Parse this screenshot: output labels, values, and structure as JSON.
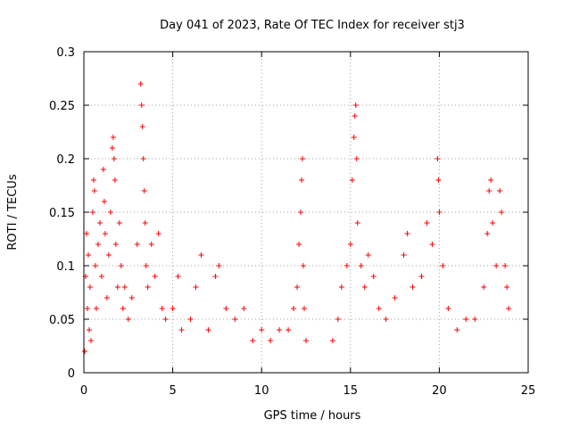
{
  "chart_data": {
    "type": "scatter",
    "title": "Day 041 of 2023, Rate Of TEC Index for receiver stj3",
    "xlabel": "GPS time / hours",
    "ylabel": "ROTI / TECUs",
    "xlim": [
      0,
      25
    ],
    "ylim": [
      0,
      0.3
    ],
    "xticks": [
      "0",
      "5",
      "10",
      "15",
      "20",
      "25"
    ],
    "yticks": [
      "0",
      "0.05",
      "0.1",
      "0.15",
      "0.2",
      "0.25",
      "0.3"
    ],
    "grid": true,
    "marker": "plus",
    "color": "#ff0000",
    "series": [
      {
        "points": [
          [
            0.05,
            0.02
          ],
          [
            0.1,
            0.09
          ],
          [
            0.15,
            0.13
          ],
          [
            0.2,
            0.06
          ],
          [
            0.25,
            0.11
          ],
          [
            0.3,
            0.04
          ],
          [
            0.35,
            0.08
          ],
          [
            0.4,
            0.03
          ],
          [
            0.5,
            0.15
          ],
          [
            0.55,
            0.18
          ],
          [
            0.6,
            0.17
          ],
          [
            0.65,
            0.1
          ],
          [
            0.7,
            0.06
          ],
          [
            0.8,
            0.12
          ],
          [
            0.9,
            0.14
          ],
          [
            1.0,
            0.09
          ],
          [
            1.1,
            0.19
          ],
          [
            1.15,
            0.16
          ],
          [
            1.2,
            0.13
          ],
          [
            1.3,
            0.07
          ],
          [
            1.4,
            0.11
          ],
          [
            1.5,
            0.15
          ],
          [
            1.6,
            0.21
          ],
          [
            1.65,
            0.22
          ],
          [
            1.7,
            0.2
          ],
          [
            1.75,
            0.18
          ],
          [
            1.8,
            0.12
          ],
          [
            1.9,
            0.08
          ],
          [
            2.0,
            0.14
          ],
          [
            2.1,
            0.1
          ],
          [
            2.2,
            0.06
          ],
          [
            2.3,
            0.08
          ],
          [
            2.5,
            0.05
          ],
          [
            2.7,
            0.07
          ],
          [
            3.0,
            0.12
          ],
          [
            3.2,
            0.27
          ],
          [
            3.25,
            0.25
          ],
          [
            3.3,
            0.23
          ],
          [
            3.35,
            0.2
          ],
          [
            3.4,
            0.17
          ],
          [
            3.45,
            0.14
          ],
          [
            3.5,
            0.1
          ],
          [
            3.6,
            0.08
          ],
          [
            3.8,
            0.12
          ],
          [
            4.0,
            0.09
          ],
          [
            4.2,
            0.13
          ],
          [
            4.4,
            0.06
          ],
          [
            4.6,
            0.05
          ],
          [
            5.0,
            0.06
          ],
          [
            5.3,
            0.09
          ],
          [
            5.5,
            0.04
          ],
          [
            6.0,
            0.05
          ],
          [
            6.3,
            0.08
          ],
          [
            6.6,
            0.11
          ],
          [
            7.0,
            0.04
          ],
          [
            7.4,
            0.09
          ],
          [
            7.6,
            0.1
          ],
          [
            8.0,
            0.06
          ],
          [
            8.5,
            0.05
          ],
          [
            9.0,
            0.06
          ],
          [
            9.5,
            0.03
          ],
          [
            10.0,
            0.04
          ],
          [
            10.5,
            0.03
          ],
          [
            11.0,
            0.04
          ],
          [
            11.5,
            0.04
          ],
          [
            11.8,
            0.06
          ],
          [
            12.0,
            0.08
          ],
          [
            12.1,
            0.12
          ],
          [
            12.2,
            0.15
          ],
          [
            12.25,
            0.18
          ],
          [
            12.3,
            0.2
          ],
          [
            12.35,
            0.1
          ],
          [
            12.4,
            0.06
          ],
          [
            12.5,
            0.03
          ],
          [
            14.0,
            0.03
          ],
          [
            14.3,
            0.05
          ],
          [
            14.5,
            0.08
          ],
          [
            14.8,
            0.1
          ],
          [
            15.0,
            0.12
          ],
          [
            15.1,
            0.18
          ],
          [
            15.2,
            0.22
          ],
          [
            15.25,
            0.24
          ],
          [
            15.3,
            0.25
          ],
          [
            15.35,
            0.2
          ],
          [
            15.4,
            0.14
          ],
          [
            15.6,
            0.1
          ],
          [
            15.8,
            0.08
          ],
          [
            16.0,
            0.11
          ],
          [
            16.3,
            0.09
          ],
          [
            16.6,
            0.06
          ],
          [
            17.0,
            0.05
          ],
          [
            17.5,
            0.07
          ],
          [
            18.0,
            0.11
          ],
          [
            18.2,
            0.13
          ],
          [
            18.5,
            0.08
          ],
          [
            19.0,
            0.09
          ],
          [
            19.3,
            0.14
          ],
          [
            19.6,
            0.12
          ],
          [
            19.9,
            0.2
          ],
          [
            19.95,
            0.18
          ],
          [
            20.0,
            0.15
          ],
          [
            20.2,
            0.1
          ],
          [
            20.5,
            0.06
          ],
          [
            21.0,
            0.04
          ],
          [
            21.5,
            0.05
          ],
          [
            22.0,
            0.05
          ],
          [
            22.5,
            0.08
          ],
          [
            22.7,
            0.13
          ],
          [
            22.8,
            0.17
          ],
          [
            22.9,
            0.18
          ],
          [
            23.0,
            0.14
          ],
          [
            23.2,
            0.1
          ],
          [
            23.4,
            0.17
          ],
          [
            23.5,
            0.15
          ],
          [
            23.7,
            0.1
          ],
          [
            23.8,
            0.08
          ],
          [
            23.9,
            0.06
          ]
        ]
      }
    ]
  }
}
